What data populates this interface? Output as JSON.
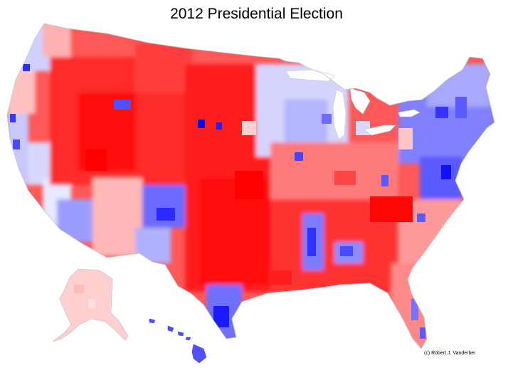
{
  "title": "2012 Presidential Election",
  "credit": "(c) Robert J. Vanderbei",
  "map": {
    "type": "choropleth",
    "subject": "county-level vote share",
    "regions": [
      "contiguous-us",
      "alaska",
      "hawaii"
    ],
    "colors": {
      "republican_strong": "#ff0000",
      "republican_lean": "#ff9c9c",
      "neutral": "#ffffff",
      "democratic_lean": "#b4b4ff",
      "democratic_strong": "#0000ff",
      "border": "#c8c8c8"
    }
  }
}
